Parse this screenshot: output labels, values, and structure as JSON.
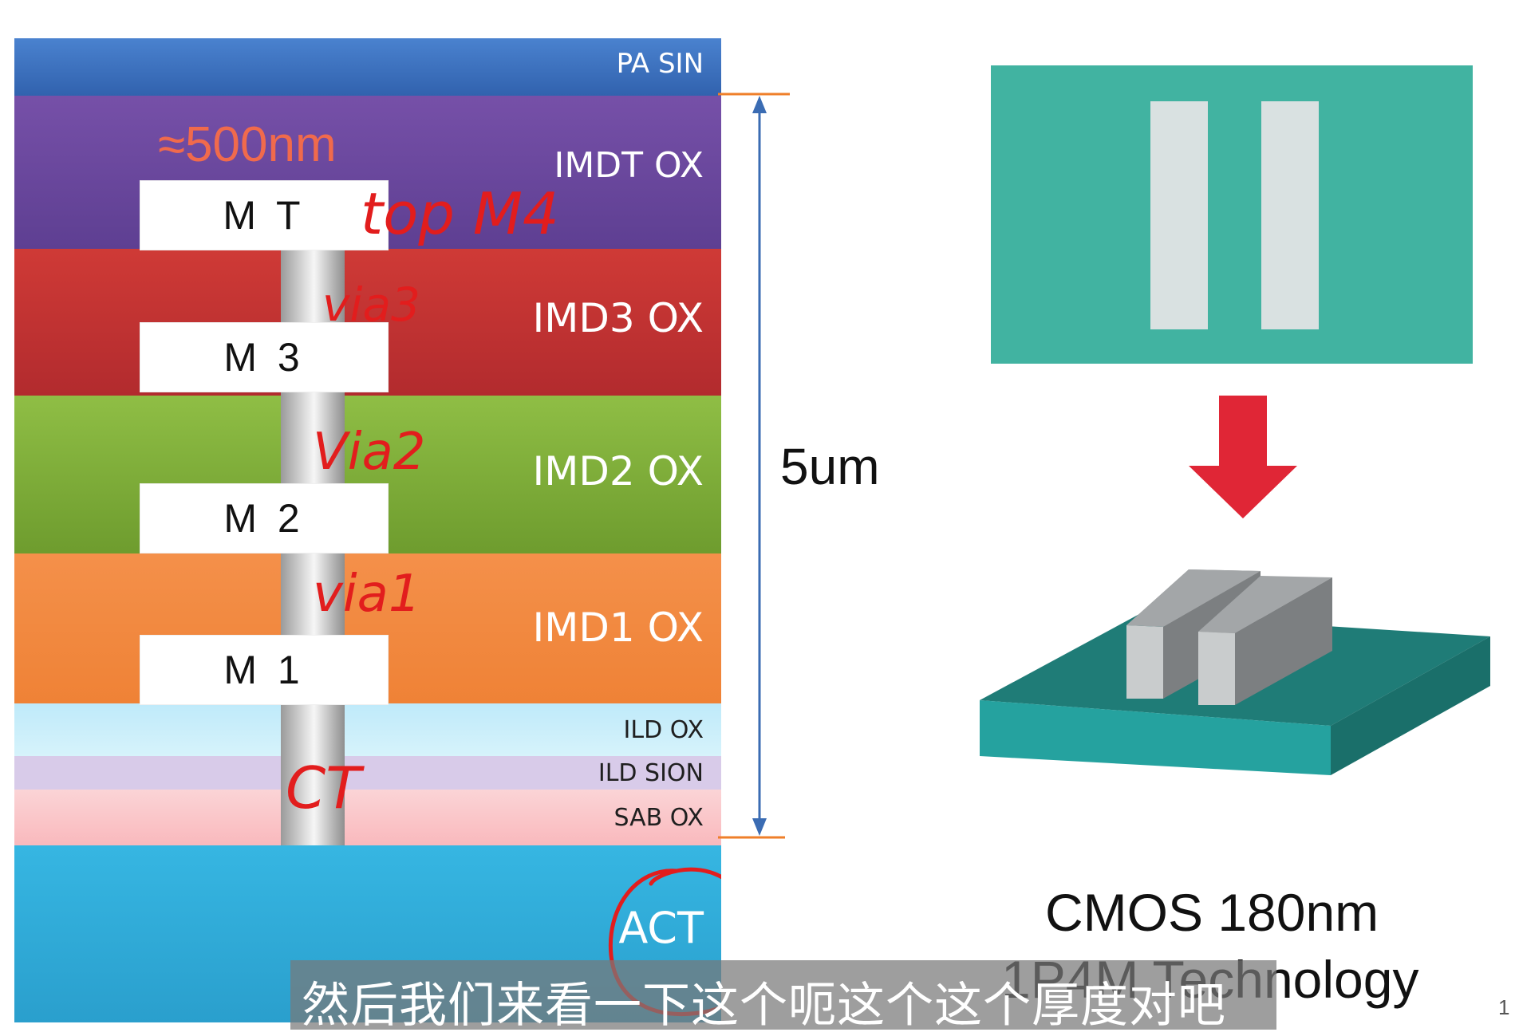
{
  "layers": {
    "pa_sin": "PA SIN",
    "imdt_ox": "IMDT OX",
    "imd3_ox": "IMD3 OX",
    "imd2_ox": "IMD2 OX",
    "imd1_ox": "IMD1 OX",
    "ild_ox": "ILD OX",
    "ild_sion": "ILD SION",
    "sab_ox": "SAB OX",
    "act": "ACT"
  },
  "metals": {
    "mt": "M T",
    "m3": "M 3",
    "m2": "M 2",
    "m1": "M 1"
  },
  "annotations": {
    "thickness_mt": "≈500nm",
    "top_m4": "top M4",
    "via3": "via3",
    "via2": "Via2",
    "via1": "via1",
    "ct": "CT"
  },
  "dimension": {
    "total_thickness": "5um"
  },
  "right_panel": {
    "title": "CMOS 180nm",
    "subtitle": "1P4M Technology"
  },
  "caption": {
    "text": "然后我们来看一下这个呃这个这个厚度对吧"
  },
  "page_number": "1",
  "colors": {
    "pa_sin": "#3d6fbd",
    "imdt_ox": "#6a4aa0",
    "imd3_ox": "#c23434",
    "imd2_ox": "#7fae3a",
    "imd1_ox": "#f28a3c",
    "ild_ox": "#c9eefa",
    "ild_sion": "#ddd0ec",
    "sab_ox": "#fbc5c8",
    "act": "#2ea9d7",
    "annotation_red": "#e21d1d",
    "dimension_blue": "#3b6cb3",
    "dimension_orange": "#ef7f2a",
    "teal": "#41b3a1",
    "arrow_red": "#e02636"
  }
}
